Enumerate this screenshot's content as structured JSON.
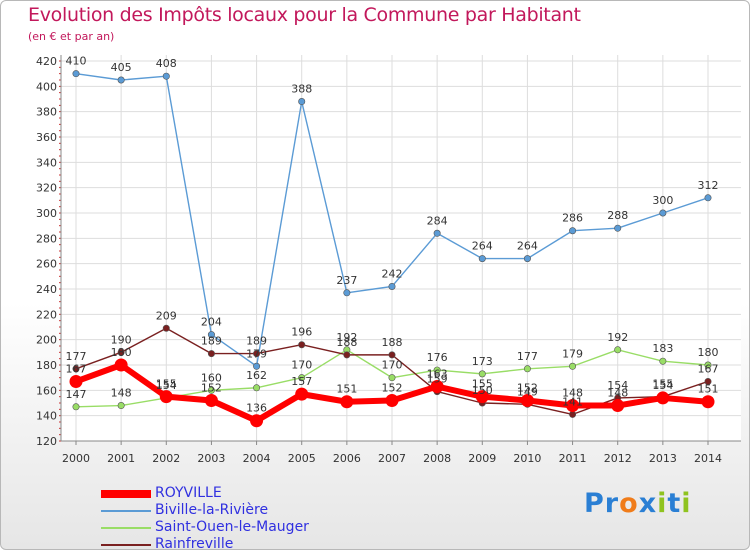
{
  "header": {
    "title": "Evolution des Impôts locaux pour la Commune par Habitant",
    "subtitle": "(en € et par an)"
  },
  "logo": {
    "text": "Proxiti",
    "letters": [
      "P",
      "r",
      "o",
      "x",
      "i",
      "t",
      "i"
    ],
    "colors": [
      "#2a7fd4",
      "#2a7fd4",
      "#f07c1a",
      "#2a7fd4",
      "#8fc31f",
      "#2a7fd4",
      "#8fc31f"
    ]
  },
  "chart_data": {
    "type": "line",
    "x": [
      "2000",
      "2001",
      "2002",
      "2003",
      "2004",
      "2005",
      "2006",
      "2007",
      "2008",
      "2009",
      "2010",
      "2011",
      "2012",
      "2013",
      "2014"
    ],
    "ylim": [
      120,
      420
    ],
    "yticks": [
      120,
      140,
      160,
      180,
      200,
      220,
      240,
      260,
      280,
      300,
      320,
      340,
      360,
      380,
      400,
      420
    ],
    "grid": true,
    "legend_position": "bottom-left",
    "series": [
      {
        "name": "ROYVILLE",
        "color": "#ff0000",
        "values": [
          167,
          180,
          155,
          152,
          136,
          157,
          151,
          152,
          163,
          155,
          152,
          148,
          148,
          154,
          151
        ]
      },
      {
        "name": "Biville-la-Rivière",
        "color": "#5b9bd5",
        "values": [
          410,
          405,
          408,
          204,
          179,
          388,
          237,
          242,
          284,
          264,
          264,
          286,
          288,
          300,
          312
        ]
      },
      {
        "name": "Saint-Ouen-le-Mauger",
        "color": "#99dd66",
        "values": [
          147,
          148,
          154,
          160,
          162,
          170,
          192,
          170,
          176,
          173,
          177,
          179,
          192,
          183,
          180
        ]
      },
      {
        "name": "Rainfreville",
        "color": "#7a2020",
        "values": [
          177,
          190,
          209,
          189,
          189,
          196,
          188,
          188,
          159,
          150,
          149,
          141,
          154,
          155,
          167
        ]
      }
    ]
  }
}
